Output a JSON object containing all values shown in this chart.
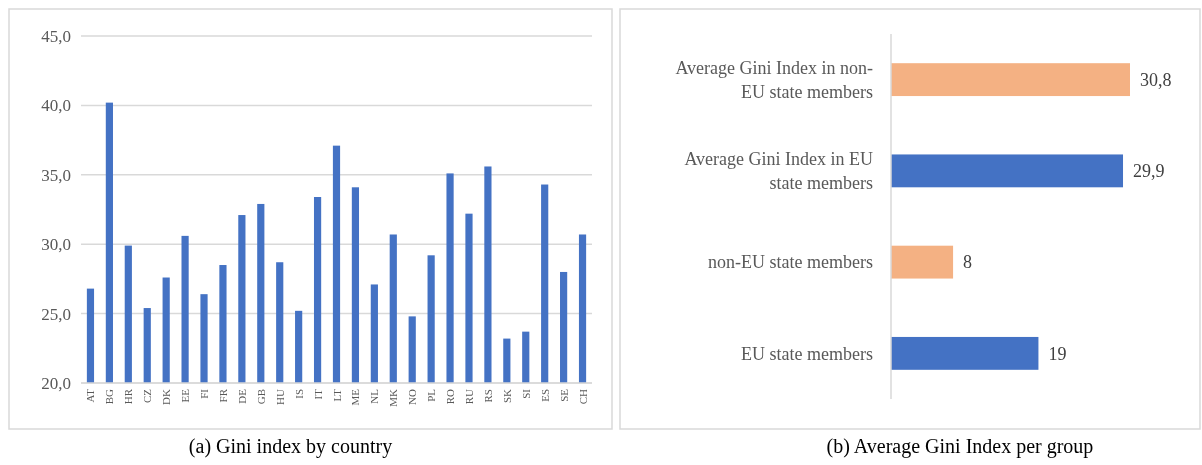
{
  "chart_data": [
    {
      "type": "bar",
      "title": "(a)   Gini index by country",
      "categories": [
        "AT",
        "BG",
        "HR",
        "CZ",
        "DK",
        "EE",
        "FI",
        "FR",
        "DE",
        "GB",
        "HU",
        "IS",
        "IT",
        "LT",
        "ME",
        "NL",
        "MK",
        "NO",
        "PL",
        "RO",
        "RU",
        "RS",
        "SK",
        "SI",
        "ES",
        "SE",
        "CH"
      ],
      "values": [
        26.8,
        40.2,
        29.9,
        25.4,
        27.6,
        30.6,
        26.4,
        28.5,
        32.1,
        32.9,
        28.7,
        25.2,
        33.4,
        37.1,
        34.1,
        27.1,
        30.7,
        24.8,
        29.2,
        35.1,
        32.2,
        35.6,
        23.2,
        23.7,
        34.3,
        28.0,
        30.7
      ],
      "color": "#4472c4",
      "ylim": [
        20,
        45
      ],
      "yticks": [
        {
          "value": 20,
          "label": "20,0"
        },
        {
          "value": 25,
          "label": "25,0"
        },
        {
          "value": 30,
          "label": "30,0"
        },
        {
          "value": 35,
          "label": "35,0"
        },
        {
          "value": 40,
          "label": "40,0"
        },
        {
          "value": 45,
          "label": "45,0"
        }
      ],
      "grid": "y"
    },
    {
      "type": "bar",
      "orientation": "horizontal",
      "title": "(b) Average Gini Index per group",
      "categories": [
        "Average Gini Index in non-EU state members",
        "Average Gini Index in EU state members",
        "non-EU state members",
        "EU state members"
      ],
      "values": [
        30.8,
        29.9,
        8,
        19
      ],
      "colors": [
        "#f4b183",
        "#4472c4",
        "#f4b183",
        "#4472c4"
      ],
      "value_labels": [
        "30,8",
        "29,9",
        "8",
        "19"
      ],
      "tick_labels": "y",
      "grid": false
    }
  ]
}
